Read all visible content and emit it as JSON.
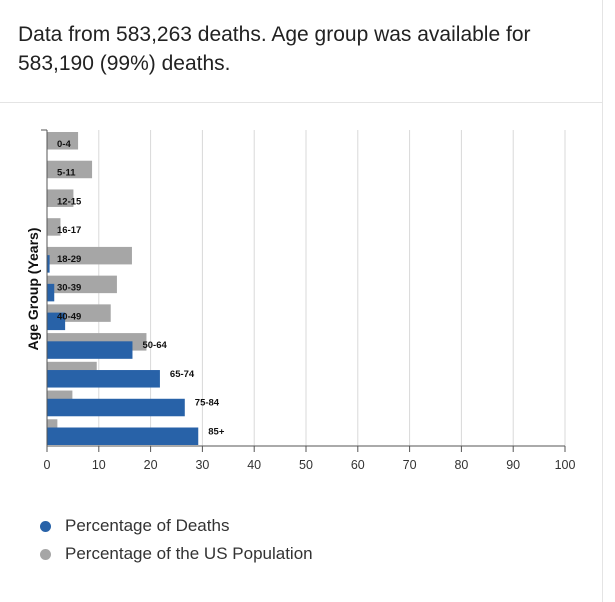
{
  "header": {
    "summary": "Data from 583,263 deaths. Age group was available for 583,190 (99%) deaths."
  },
  "colors": {
    "deaths": "#2862a8",
    "population": "#a6a6a6",
    "grid": "#d9d9d9",
    "axis": "#555555"
  },
  "legend": {
    "items": [
      {
        "label": "Percentage of Deaths",
        "color": "#2862a8"
      },
      {
        "label": "Percentage of the US Population",
        "color": "#a6a6a6"
      }
    ]
  },
  "chart_data": {
    "type": "bar",
    "orientation": "horizontal",
    "ylabel": "Age Group (Years)",
    "xlabel": "",
    "xlim": [
      0,
      100
    ],
    "xticks": [
      0,
      10,
      20,
      30,
      40,
      50,
      60,
      70,
      80,
      90,
      100
    ],
    "grid": true,
    "legend_position": "bottom-left",
    "categories": [
      "0-4",
      "5-11",
      "12-15",
      "16-17",
      "18-29",
      "30-39",
      "40-49",
      "50-64",
      "65-74",
      "75-84",
      "85+"
    ],
    "series": [
      {
        "name": "Percentage of Deaths",
        "color": "#2862a8",
        "values": [
          0.0,
          0.0,
          0.0,
          0.0,
          0.5,
          1.4,
          3.5,
          16.5,
          21.8,
          26.6,
          29.2
        ]
      },
      {
        "name": "Percentage of the US Population",
        "color": "#a6a6a6",
        "values": [
          6.0,
          8.7,
          5.1,
          2.6,
          16.4,
          13.5,
          12.3,
          19.2,
          9.6,
          4.9,
          2.0
        ]
      }
    ]
  }
}
